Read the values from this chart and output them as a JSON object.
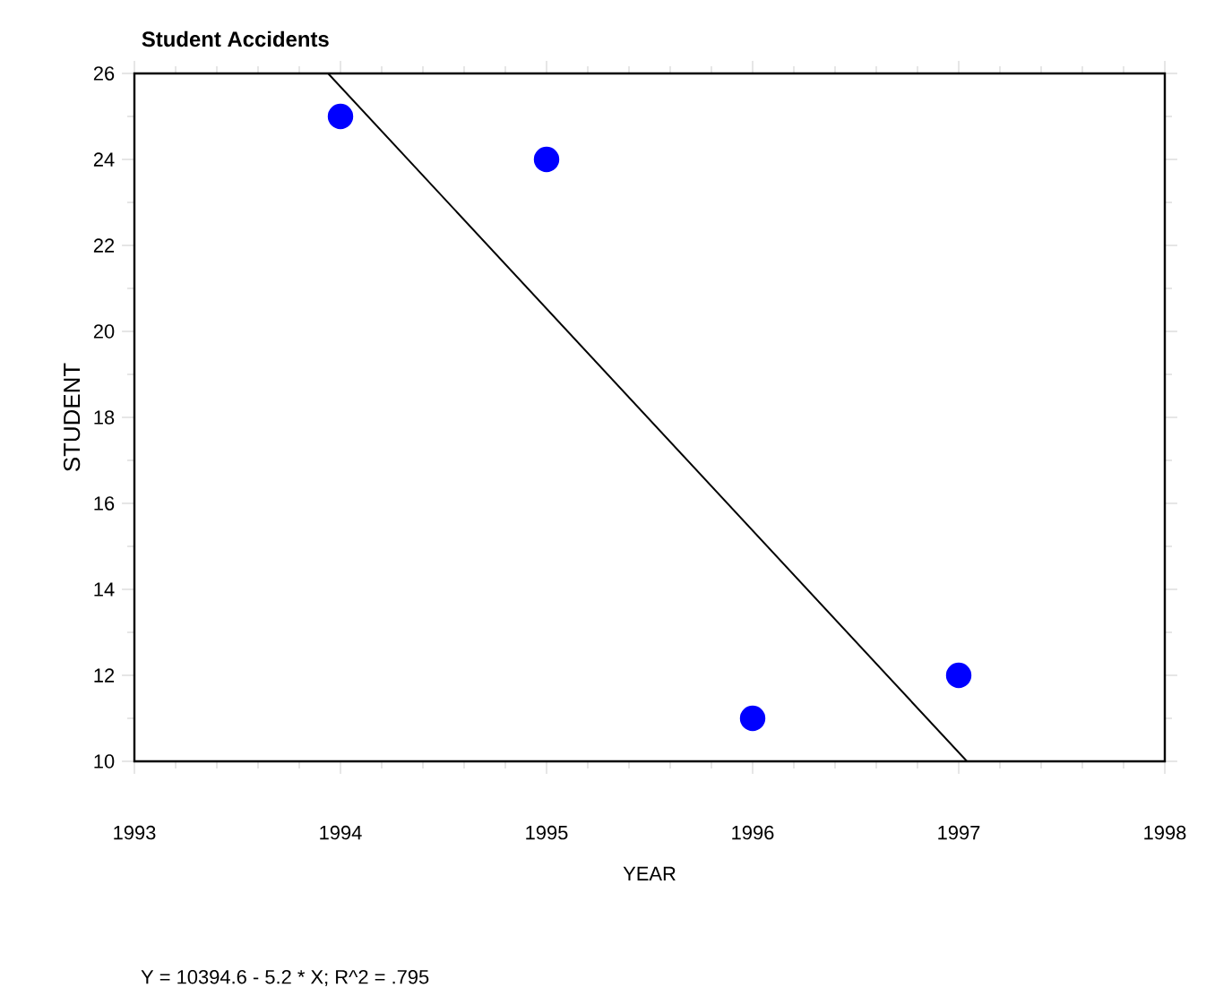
{
  "chart_data": {
    "type": "scatter",
    "title": "Student Accidents",
    "xlabel": "YEAR",
    "ylabel": "STUDENT",
    "annotations": [
      "Y = 10394.6 - 5.2 * X; R^2 = .795"
    ],
    "series": [
      {
        "type": "scatter",
        "color": "#0000ff",
        "x": [
          1994,
          1995,
          1996,
          1997
        ],
        "values": [
          25,
          24,
          11,
          12
        ]
      },
      {
        "type": "line",
        "color": "#000000",
        "line_style": "solid",
        "marker": "none",
        "x": [
          1993.94,
          1997.04
        ],
        "values": [
          26,
          10
        ]
      }
    ],
    "xlim": [
      1993,
      1998
    ],
    "xticks": [
      1993,
      1994,
      1995,
      1996,
      1997,
      1998
    ],
    "ylim": [
      10,
      26
    ],
    "yticks": [
      10,
      12,
      14,
      16,
      18,
      20,
      22,
      24,
      26
    ],
    "marker": "circle",
    "grid": false
  }
}
